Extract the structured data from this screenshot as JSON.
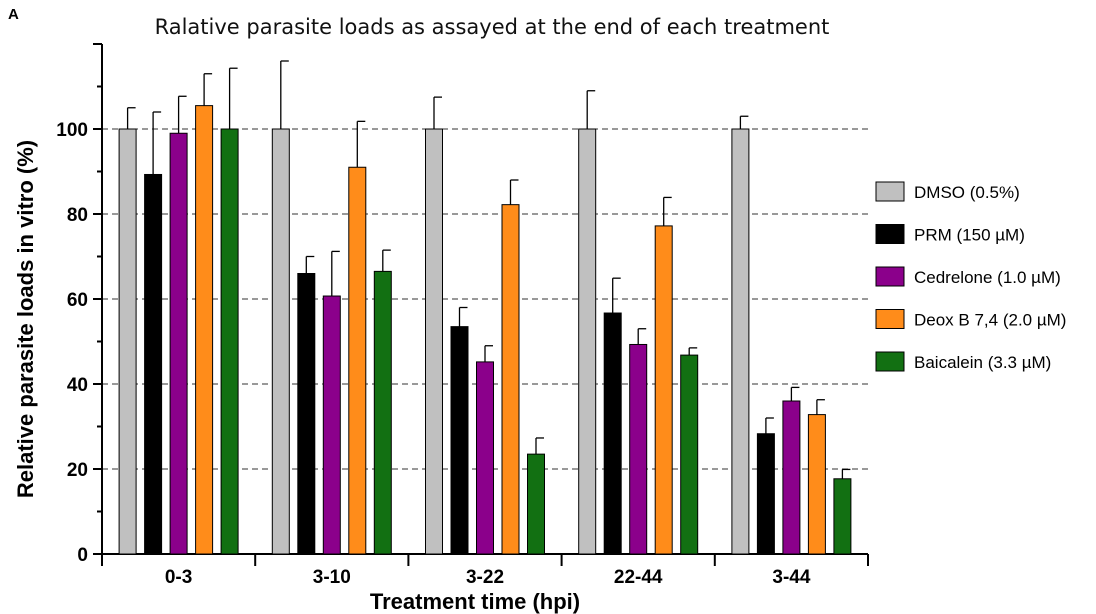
{
  "panel_label": "A",
  "chart_data": {
    "type": "bar",
    "title": "Ralative parasite loads as assayed at the end of each treatment",
    "xlabel": "Treatment time (hpi)",
    "ylabel": "Relative parasite loads in vitro (%)",
    "ylim": [
      0,
      120
    ],
    "yticks": [
      0,
      20,
      40,
      60,
      80,
      100
    ],
    "grid": "horizontal dashed at 20, 40, 60, 80, 100",
    "legend_position": "right",
    "categories": [
      "0-3",
      "3-10",
      "3-22",
      "22-44",
      "3-44"
    ],
    "series": [
      {
        "name": "DMSO (0.5%)",
        "color": "#c0c0c0",
        "values": [
          100,
          100,
          100,
          100,
          100
        ],
        "errors": [
          5,
          16,
          7.5,
          9,
          3
        ]
      },
      {
        "name": "PRM (150 µM)",
        "color": "#000000",
        "values": [
          89.3,
          66,
          53.5,
          56.7,
          28.3
        ],
        "errors": [
          14.7,
          4,
          4.5,
          8.2,
          3.7
        ]
      },
      {
        "name": "Cedrelone (1.0 µM)",
        "color": "#8b008b",
        "values": [
          99,
          60.7,
          45.2,
          49.3,
          36
        ],
        "errors": [
          8.7,
          10.5,
          3.8,
          3.7,
          3.2
        ]
      },
      {
        "name": "Deox B 7,4 (2.0 µM)",
        "color": "#ff8c1a",
        "values": [
          105.5,
          91,
          82.2,
          77.2,
          32.8
        ],
        "errors": [
          7.5,
          10.8,
          5.8,
          6.7,
          3.5
        ]
      },
      {
        "name": "Baicalein (3.3 µM)",
        "color": "#127012",
        "values": [
          100,
          66.5,
          23.5,
          46.8,
          17.7
        ],
        "errors": [
          14.3,
          5,
          3.8,
          1.7,
          2.2
        ]
      }
    ]
  }
}
